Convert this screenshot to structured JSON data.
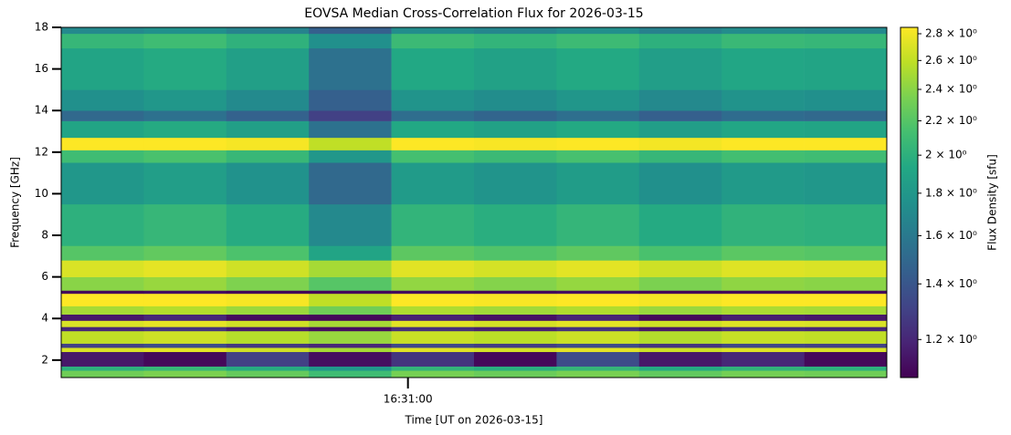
{
  "chart_data": {
    "type": "heatmap",
    "title": "EOVSA Median Cross-Correlation Flux for 2026-03-15",
    "xlabel": "Time [UT on 2026-03-15]",
    "ylabel": "Frequency [GHz]",
    "colorbar_label": "Flux Density [sfu]",
    "colormap": "viridis",
    "color_scale": "log",
    "x": [
      59418,
      59428,
      59438,
      59448,
      59458,
      59468,
      59478,
      59488,
      59498,
      59508,
      59518
    ],
    "y": [
      1.16,
      1.5,
      1.7,
      2.4,
      2.6,
      2.8,
      3.4,
      3.6,
      3.9,
      4.2,
      4.6,
      5.2,
      5.35,
      6.0,
      6.8,
      7.5,
      9.5,
      11.5,
      12.1,
      12.7,
      13.5,
      14.0,
      15.0,
      17.0,
      17.7,
      18.0
    ],
    "z": [
      [
        2.3,
        2.35,
        2.26,
        2.1,
        2.33,
        2.28,
        2.34,
        2.25,
        2.32,
        2.3
      ],
      [
        2.0,
        2.05,
        1.96,
        1.8,
        2.03,
        1.98,
        2.04,
        1.95,
        2.02,
        2.0
      ],
      [
        1.15,
        1.1,
        1.3,
        1.12,
        1.25,
        1.1,
        1.35,
        1.15,
        1.2,
        1.1
      ],
      [
        2.7,
        2.75,
        2.66,
        2.5,
        2.73,
        2.68,
        2.74,
        2.65,
        2.72,
        2.7
      ],
      [
        1.3,
        1.35,
        1.26,
        1.2,
        1.33,
        1.28,
        1.34,
        1.25,
        1.32,
        1.3
      ],
      [
        2.6,
        2.65,
        2.56,
        2.45,
        2.63,
        2.58,
        2.64,
        2.55,
        2.62,
        2.6
      ],
      [
        1.2,
        1.25,
        1.16,
        1.12,
        1.23,
        1.18,
        1.24,
        1.15,
        1.22,
        1.2
      ],
      [
        2.7,
        2.75,
        2.66,
        2.5,
        2.73,
        2.68,
        2.74,
        2.65,
        2.72,
        2.7
      ],
      [
        1.15,
        1.2,
        1.11,
        1.1,
        1.18,
        1.13,
        1.19,
        1.1,
        1.17,
        1.15
      ],
      [
        2.5,
        2.55,
        2.46,
        2.3,
        2.53,
        2.48,
        2.54,
        2.45,
        2.52,
        2.5
      ],
      [
        2.85,
        2.85,
        2.82,
        2.6,
        2.85,
        2.83,
        2.85,
        2.81,
        2.85,
        2.85
      ],
      [
        1.1,
        1.12,
        1.09,
        1.1,
        1.11,
        1.1,
        1.12,
        1.09,
        1.1,
        1.1
      ],
      [
        2.4,
        2.45,
        2.36,
        2.2,
        2.43,
        2.38,
        2.44,
        2.35,
        2.42,
        2.4
      ],
      [
        2.7,
        2.75,
        2.66,
        2.5,
        2.73,
        2.68,
        2.74,
        2.65,
        2.72,
        2.7
      ],
      [
        2.2,
        2.25,
        2.16,
        1.9,
        2.23,
        2.18,
        2.24,
        2.15,
        2.22,
        2.2
      ],
      [
        2.0,
        2.05,
        1.96,
        1.7,
        2.03,
        1.98,
        2.04,
        1.95,
        2.02,
        2.0
      ],
      [
        1.8,
        1.85,
        1.76,
        1.5,
        1.83,
        1.78,
        1.84,
        1.75,
        1.82,
        1.8
      ],
      [
        2.1,
        2.15,
        2.06,
        1.8,
        2.13,
        2.08,
        2.14,
        2.05,
        2.12,
        2.1
      ],
      [
        2.85,
        2.85,
        2.82,
        2.6,
        2.85,
        2.83,
        2.85,
        2.81,
        2.85,
        2.85
      ],
      [
        1.9,
        1.95,
        1.86,
        1.55,
        1.93,
        1.88,
        1.94,
        1.85,
        1.92,
        1.9
      ],
      [
        1.5,
        1.55,
        1.46,
        1.3,
        1.53,
        1.48,
        1.54,
        1.45,
        1.52,
        1.5
      ],
      [
        1.75,
        1.8,
        1.71,
        1.45,
        1.78,
        1.73,
        1.79,
        1.7,
        1.77,
        1.75
      ],
      [
        1.9,
        1.95,
        1.86,
        1.55,
        1.93,
        1.88,
        1.94,
        1.85,
        1.92,
        1.9
      ],
      [
        2.05,
        2.1,
        2.01,
        1.75,
        2.08,
        2.03,
        2.09,
        2.0,
        2.07,
        2.05
      ],
      [
        1.7,
        1.75,
        1.66,
        1.45,
        1.73,
        1.68,
        1.74,
        1.65,
        1.72,
        1.7
      ]
    ],
    "xlim": [
      59418,
      59518
    ],
    "xticks": [
      {
        "value": 59460,
        "label": "16:31:00"
      }
    ],
    "ylim": [
      1.16,
      18
    ],
    "yticks": [
      2,
      4,
      6,
      8,
      10,
      12,
      14,
      16,
      18
    ],
    "clim": [
      1.08,
      2.85
    ],
    "cticks": [
      {
        "value": 1.2,
        "label": "1.2 × 10⁰"
      },
      {
        "value": 1.4,
        "label": "1.4 × 10⁰"
      },
      {
        "value": 1.6,
        "label": "1.6 × 10⁰"
      },
      {
        "value": 1.8,
        "label": "1.8 × 10⁰"
      },
      {
        "value": 2,
        "label": "2 × 10⁰"
      },
      {
        "value": 2.2,
        "label": "2.2 × 10⁰"
      },
      {
        "value": 2.4,
        "label": "2.4 × 10⁰"
      },
      {
        "value": 2.6,
        "label": "2.6 × 10⁰"
      },
      {
        "value": 2.8,
        "label": "2.8 × 10⁰"
      }
    ]
  }
}
